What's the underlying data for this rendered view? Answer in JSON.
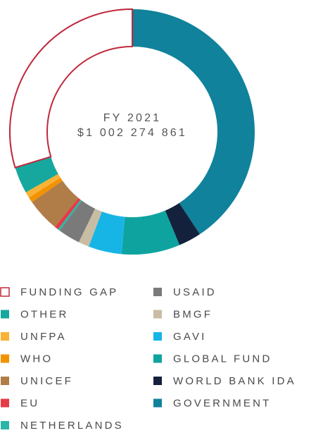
{
  "chart_data": {
    "type": "donut",
    "center_title": "FY 2021",
    "center_value": "$1 002 274 861",
    "slices": [
      {
        "name": "FUNDING GAP",
        "color": "#c0283c",
        "hollow": true,
        "value": 29.7
      },
      {
        "name": "OTHER",
        "color": "#16a89e",
        "value": 3.5
      },
      {
        "name": "UNFPA",
        "color": "#f9b234",
        "value": 0.8
      },
      {
        "name": "WHO",
        "color": "#f39200",
        "value": 0.7
      },
      {
        "name": "UNICEF",
        "color": "#b07d48",
        "value": 4.4
      },
      {
        "name": "EU",
        "color": "#e63946",
        "value": 0.5
      },
      {
        "name": "NETHERLANDS",
        "color": "#2bb5a8",
        "value": 0.3
      },
      {
        "name": "USAID",
        "color": "#7a7a7a",
        "value": 2.9
      },
      {
        "name": "BMGF",
        "color": "#c9bca4",
        "value": 1.4
      },
      {
        "name": "GAVI",
        "color": "#17b5e6",
        "value": 4.4
      },
      {
        "name": "GLOBAL FUND",
        "color": "#0fa3a0",
        "value": 7.7
      },
      {
        "name": "WORLD BANK IDA",
        "color": "#14213d",
        "value": 3.0
      },
      {
        "name": "GOVERNMENT",
        "color": "#10829b",
        "value": 40.7
      }
    ]
  }
}
